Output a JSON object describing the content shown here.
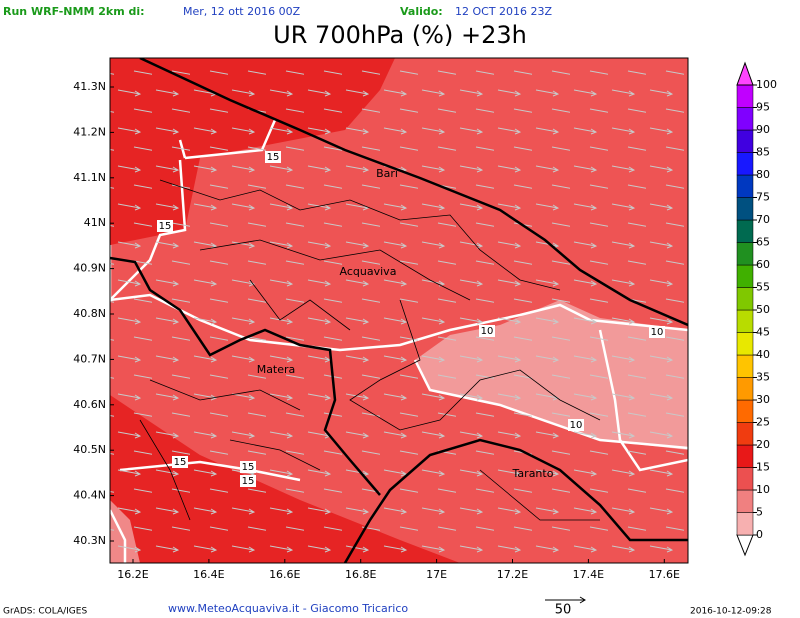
{
  "header": {
    "run_label": "Run WRF-NMM 2km di:",
    "run_date": "Mer, 12 ott 2016 00Z",
    "valid_label": "Valido:",
    "valid_date": "12 OCT 2016 23Z"
  },
  "title": "UR 700hPa (%) +23h",
  "lon_ticks": [
    "16.2E",
    "16.4E",
    "16.6E",
    "16.8E",
    "17E",
    "17.2E",
    "17.4E",
    "17.6E"
  ],
  "lat_ticks": [
    "41.3N",
    "41.2N",
    "41.1N",
    "41N",
    "40.9N",
    "40.8N",
    "40.7N",
    "40.6N",
    "40.5N",
    "40.4N",
    "40.3N"
  ],
  "colorbar": {
    "labels": [
      "0",
      "5",
      "10",
      "15",
      "20",
      "25",
      "30",
      "35",
      "40",
      "45",
      "50",
      "55",
      "60",
      "65",
      "70",
      "75",
      "80",
      "85",
      "90",
      "95",
      "100"
    ],
    "colors": [
      "#f7b0b0",
      "#f08080",
      "#ec5050",
      "#e81818",
      "#f03c10",
      "#ff6a00",
      "#ff9a00",
      "#ffc400",
      "#e8e800",
      "#b8dc00",
      "#80c800",
      "#40b000",
      "#209020",
      "#006a50",
      "#005080",
      "#0038c0",
      "#1818ff",
      "#4000e0",
      "#8000ff",
      "#c000ff"
    ]
  },
  "cities": [
    "Bari",
    "Acquaviva",
    "Matera",
    "Taranto"
  ],
  "contour_labels": [
    "15",
    "15",
    "10",
    "10",
    "10",
    "15",
    "15",
    "15"
  ],
  "footer": {
    "software": "GrADS: COLA/IGES",
    "credits": "www.MeteoAcquaviva.it - Giacomo Tricarico",
    "arrow_label": "50",
    "timestamp": "2016-10-12-09:28"
  }
}
